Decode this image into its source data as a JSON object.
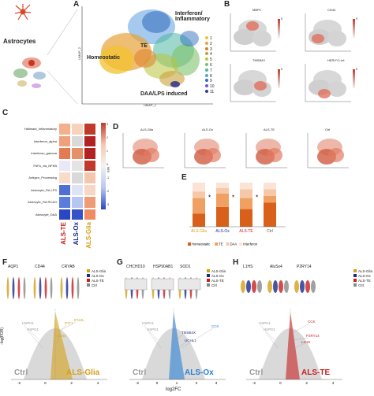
{
  "panel_letters": {
    "A": "A",
    "B": "B",
    "C": "C",
    "D": "D",
    "E": "E",
    "F": "F",
    "G": "G",
    "H": "H"
  },
  "astrocytes_title": "Astrocytes",
  "panelA": {
    "cluster_labels": {
      "interferon": "Interferon/\nInflammatory",
      "te": "TE",
      "homeostatic": "Homeostatic",
      "daa": "DAA/LPS induced"
    },
    "legend": [
      "1",
      "2",
      "3",
      "4",
      "5",
      "6",
      "7",
      "8",
      "9",
      "10",
      "11"
    ],
    "legend_colors": [
      "#f2c12e",
      "#e7a23a",
      "#e07b2a",
      "#c9a13a",
      "#b8c53c",
      "#7fc36c",
      "#4fb6a1",
      "#5b9ee0",
      "#2f6fbf",
      "#6a5acd",
      "#3a3a8c"
    ],
    "xlabel": "UMAP_1",
    "ylabel": "UMAP_2"
  },
  "panelB": {
    "titles": [
      "MBP1",
      "CD44",
      "TMSB4X",
      "HERVY1-int"
    ],
    "axis_x": "UMAP_1",
    "axis_y": "UMAP_2",
    "colorbar_max": "5"
  },
  "panelC": {
    "rows": [
      "Hallmark_Inflammatory",
      "Interferon_alpha",
      "Interferon_gamma",
      "TNFa_via_NFKB",
      "Antigen_Processing",
      "Astrocyte_RA LPS",
      "Astrocyte_RA RCAO",
      "Astrocyte_DAA"
    ],
    "columns": [
      "ALS-TE",
      "ALS-Ox",
      "ALS-Glia"
    ],
    "column_colors": [
      "#c81e1e",
      "#1a2b8f",
      "#d4a017"
    ],
    "colorbar_label": "NES",
    "colorbar_ticks": [
      "3",
      "2",
      "1",
      "0",
      "-1",
      "-2",
      "-3"
    ],
    "cells": [
      [
        "#f4b08b",
        "#f7d3bd",
        "#c0392b"
      ],
      [
        "#f0a07a",
        "#d9d9d9",
        "#b22222"
      ],
      [
        "#e47a52",
        "#e59066",
        "#b22222"
      ],
      [
        "#e8e8f6",
        "#e4e4e4",
        "#c0392b"
      ],
      [
        "#f7dccc",
        "#d9d9d9",
        "#f2c7ad"
      ],
      [
        "#4f6fd6",
        "#dfe3f3",
        "#f7d6c4"
      ],
      [
        "#5a7ddd",
        "#b8c5f0",
        "#ee9b76"
      ],
      [
        "#2b46c4",
        "#3553c9",
        "#f08c64"
      ]
    ]
  },
  "panelD": {
    "titles": [
      "ALS-Glia",
      "ALS-Ox",
      "ALS-TE",
      "Ctrl"
    ],
    "axis_x": "UMAP_1",
    "axis_y": "UMAP_2"
  },
  "panelE": {
    "categories": [
      "ALS-Glia",
      "ALS-Ox",
      "ALS-TE",
      "Ctrl"
    ],
    "category_colors": [
      "#d4a017",
      "#1a2b8f",
      "#c81e1e",
      "#555555"
    ],
    "legend": [
      "Homeostatic",
      "TE",
      "DAA",
      "Interferon"
    ],
    "legend_colors": [
      "#d9601a",
      "#f0a060",
      "#f6c8a8",
      "#fbe3d5"
    ],
    "stacks": [
      [
        0.3,
        0.35,
        0.15,
        0.2
      ],
      [
        0.45,
        0.3,
        0.13,
        0.12
      ],
      [
        0.4,
        0.25,
        0.2,
        0.15
      ],
      [
        0.55,
        0.15,
        0.15,
        0.15
      ]
    ],
    "star": "*"
  },
  "panelF": {
    "genes": [
      "AQP1",
      "CD44",
      "CRYAB"
    ],
    "legend": [
      "ALS-Glia",
      "ALS-Ox",
      "ALS-TE",
      "Ctrl"
    ],
    "legend_colors": [
      "#d4a017",
      "#1a2b8f",
      "#c81e1e",
      "#888888"
    ],
    "volcano_labels": [
      "HSPH1",
      "HSPD1",
      "IFIT1",
      "IFI44L",
      "CD44"
    ],
    "ctrl_label": "Ctrl",
    "group_label": "ALS-Glia",
    "xticks": [
      "-2",
      "0",
      "2",
      "4"
    ],
    "ylabel": "-log(FDR)"
  },
  "panelG": {
    "genes": [
      "CHCHD10",
      "HSP90AB1",
      "SOD1"
    ],
    "legend": [
      "ALS-Glia",
      "ALS-Ox",
      "ALS-TE",
      "Ctrl"
    ],
    "legend_colors": [
      "#d4a017",
      "#1a2b8f",
      "#c81e1e",
      "#888888"
    ],
    "volcano_labels": [
      "HSPH1",
      "HSPD1",
      "TMSB4X",
      "UCHL1",
      "CCK"
    ],
    "ctrl_label": "Ctrl",
    "group_label": "ALS-Ox",
    "xticks": [
      "-2",
      "0",
      "1",
      "2",
      "3"
    ],
    "xlabel": "log2FC"
  },
  "panelH": {
    "genes": [
      "L1HS",
      "AluSx4",
      "P2RY14"
    ],
    "legend": [
      "ALS-Glia",
      "ALS-Ox",
      "ALS-TE",
      "Ctrl"
    ],
    "legend_colors": [
      "#d4a017",
      "#1a2b8f",
      "#c81e1e",
      "#888888"
    ],
    "volcano_labels": [
      "HSPH1",
      "HSPD1",
      "CCK",
      "P2RY14",
      "L1HS"
    ],
    "ctrl_label": "Ctrl",
    "group_label": "ALS-TE",
    "xticks": [
      "-2",
      "0",
      "2",
      "4"
    ]
  }
}
